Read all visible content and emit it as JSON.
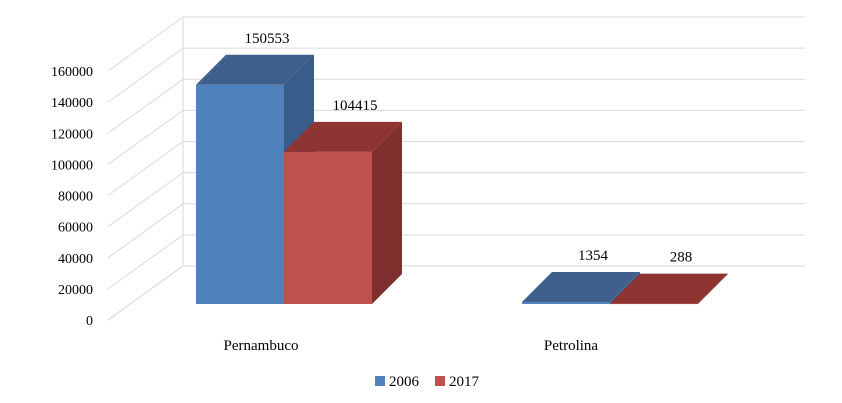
{
  "chart_data": {
    "type": "bar",
    "three_d": true,
    "categories": [
      "Pernambuco",
      "Petrolina"
    ],
    "series": [
      {
        "name": "2006",
        "values": [
          150553,
          1354
        ],
        "color": "#4F81BD",
        "top_color": "#3F5F8C",
        "side_color": "#385D8A"
      },
      {
        "name": "2017",
        "values": [
          104415,
          288
        ],
        "color": "#C0504D",
        "top_color": "#8E3432",
        "side_color": "#7F2F2D"
      }
    ],
    "ylim": [
      0,
      160000
    ],
    "ytick_step": 20000,
    "ytick_labels": [
      "0",
      "20000",
      "40000",
      "60000",
      "80000",
      "100000",
      "120000",
      "140000",
      "160000"
    ],
    "data_labels": [
      [
        "150553",
        "1354"
      ],
      [
        "104415",
        "288"
      ]
    ],
    "legend_position": "bottom",
    "grid": true,
    "grid_color": "#d9d9d9"
  }
}
